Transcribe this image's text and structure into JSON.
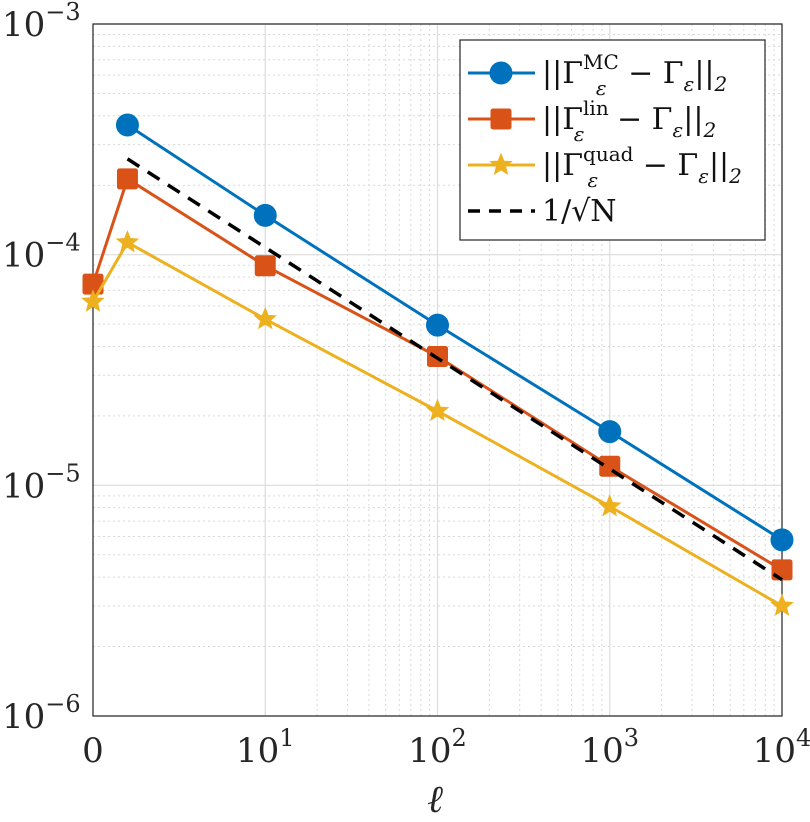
{
  "chart_data": {
    "type": "line",
    "title": "",
    "xlabel": "ℓ",
    "ylabel": "",
    "x_scale": "log-with-zero",
    "y_scale": "log",
    "ylim": [
      1e-06,
      0.001
    ],
    "x_ticks": [
      {
        "value": 0,
        "base": "0",
        "exp": ""
      },
      {
        "value": 10,
        "base": "10",
        "exp": "1"
      },
      {
        "value": 100,
        "base": "10",
        "exp": "2"
      },
      {
        "value": 1000,
        "base": "10",
        "exp": "3"
      },
      {
        "value": 10000,
        "base": "10",
        "exp": "4"
      }
    ],
    "y_ticks": [
      {
        "value": 1e-06,
        "base": "10",
        "exp": "−6"
      },
      {
        "value": 1e-05,
        "base": "10",
        "exp": "−5"
      },
      {
        "value": 0.0001,
        "base": "10",
        "exp": "−4"
      },
      {
        "value": 0.001,
        "base": "10",
        "exp": "−3"
      }
    ],
    "grid": true,
    "legend_position": "top-right",
    "x": [
      0,
      2,
      10,
      100,
      1000,
      10000
    ],
    "series": [
      {
        "name": "||Γε^MC − Γε||2",
        "legend": {
          "pre": "||Γ",
          "sup": "MC",
          "sub": "ε",
          "post": " − Γ",
          "sub2": "ε",
          "post2": "||",
          "sub3": "2"
        },
        "color": "#0072BD",
        "marker": "circle",
        "x": [
          2,
          10,
          100,
          1000,
          10000
        ],
        "values": [
          0.000365,
          0.000148,
          4.95e-05,
          1.71e-05,
          5.8e-06
        ]
      },
      {
        "name": "||Γε^lin − Γε||2",
        "legend": {
          "pre": "||Γ",
          "sup": "lin",
          "sub": "ε",
          "post": " − Γ",
          "sub2": "ε",
          "post2": "||",
          "sub3": "2"
        },
        "color": "#D95319",
        "marker": "square",
        "x": [
          0,
          2,
          10,
          100,
          1000,
          10000
        ],
        "values": [
          7.45e-05,
          0.000213,
          8.95e-05,
          3.62e-05,
          1.21e-05,
          4.3e-06
        ]
      },
      {
        "name": "||Γε^quad − Γε||2",
        "legend": {
          "pre": "||Γ",
          "sup": "quad",
          "sub": "ε",
          "post": " − Γ",
          "sub2": "ε",
          "post2": "||",
          "sub3": "2"
        },
        "color": "#EDB120",
        "marker": "star",
        "x": [
          0,
          2,
          10,
          100,
          1000,
          10000
        ],
        "values": [
          6.25e-05,
          0.000113,
          5.25e-05,
          2.1e-05,
          8.1e-06,
          3e-06
        ]
      },
      {
        "name": "1/√N",
        "legend": {
          "pre": "1/√N",
          "sup": "",
          "sub": "",
          "post": "",
          "sub2": "",
          "post2": "",
          "sub3": ""
        },
        "color": "#000000",
        "marker": "none",
        "dashed": true,
        "x": [
          2,
          10000
        ],
        "values": [
          0.00026,
          3.9e-06
        ]
      }
    ]
  }
}
